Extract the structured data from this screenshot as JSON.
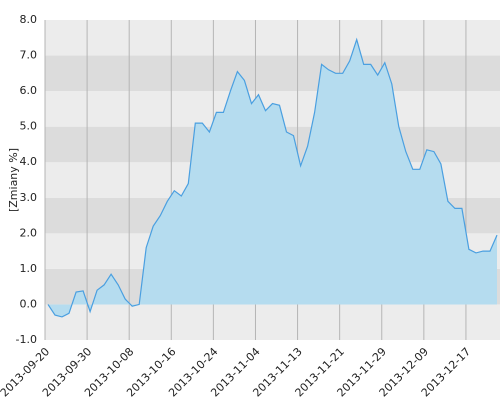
{
  "chart_data": {
    "type": "area",
    "y_label": "[Zmiany %]",
    "categories": [
      "2013-09-20",
      null,
      null,
      null,
      null,
      null,
      "2013-09-30",
      null,
      null,
      null,
      null,
      null,
      "2013-10-08",
      null,
      null,
      null,
      null,
      null,
      "2013-10-16",
      null,
      null,
      null,
      null,
      null,
      "2013-10-24",
      null,
      null,
      null,
      null,
      null,
      "2013-11-04",
      null,
      null,
      null,
      null,
      null,
      "2013-11-13",
      null,
      null,
      null,
      null,
      null,
      "2013-11-21",
      null,
      null,
      null,
      null,
      null,
      "2013-11-29",
      null,
      null,
      null,
      null,
      null,
      "2013-12-09",
      null,
      null,
      null,
      null,
      null,
      "2013-12-17",
      null,
      null,
      null,
      null
    ],
    "values": [
      0.0,
      -0.3,
      -0.35,
      -0.25,
      0.35,
      0.38,
      -0.2,
      0.4,
      0.55,
      0.85,
      0.55,
      0.15,
      -0.05,
      0.0,
      1.6,
      2.2,
      2.5,
      2.9,
      3.2,
      3.05,
      3.4,
      5.1,
      5.1,
      4.85,
      5.4,
      5.4,
      6.0,
      6.55,
      6.3,
      5.65,
      5.9,
      5.45,
      5.65,
      5.6,
      4.85,
      4.75,
      3.9,
      4.45,
      5.4,
      6.75,
      6.6,
      6.5,
      6.5,
      6.85,
      7.45,
      6.75,
      6.75,
      6.45,
      6.8,
      6.2,
      5.0,
      4.3,
      3.8,
      3.8,
      4.35,
      4.3,
      3.95,
      2.9,
      2.7,
      2.7,
      1.55,
      1.45,
      1.5,
      1.5,
      1.95
    ],
    "color": "#4a9fe0",
    "fill": "#b5dcef",
    "ylim": [
      -1,
      8
    ],
    "yticks": [
      {
        "value": -1,
        "label": "-1.0"
      },
      {
        "value": 0,
        "label": "0.0"
      },
      {
        "value": 1,
        "label": "1.0"
      },
      {
        "value": 2,
        "label": "2.0"
      },
      {
        "value": 3,
        "label": "3.0"
      },
      {
        "value": 4,
        "label": "4.0"
      },
      {
        "value": 5,
        "label": "5.0"
      },
      {
        "value": 6,
        "label": "6.0"
      },
      {
        "value": 7,
        "label": "7.0"
      },
      {
        "value": 8,
        "label": "8.0"
      }
    ],
    "bands": true,
    "grid": true
  }
}
